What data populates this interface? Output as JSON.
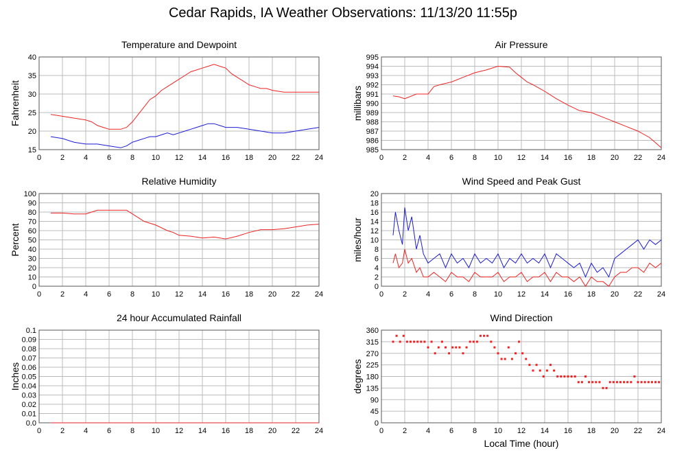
{
  "title": "Cedar Rapids, IA Weather Observations: 11/13/20 11:55p",
  "x_axis_label": "Local Time (hour)",
  "colors": {
    "red": "#ee2222",
    "blue": "#1a1ad6",
    "grid": "#bbbbbb",
    "frame": "#555555"
  },
  "chart_data": [
    {
      "id": "temp",
      "type": "line",
      "title": "Temperature and Dewpoint",
      "ylabel": "Fahrenheit",
      "ylim": [
        15,
        40
      ],
      "yticks": [
        "15",
        "20",
        "25",
        "30",
        "35",
        "40"
      ],
      "xlim": [
        0,
        24
      ],
      "xticks": [
        "0",
        "2",
        "4",
        "6",
        "8",
        "10",
        "12",
        "14",
        "16",
        "18",
        "20",
        "22",
        "24"
      ],
      "grid": true,
      "series": [
        {
          "color": "red",
          "x": [
            1,
            2,
            3,
            4,
            4.5,
            5,
            5.5,
            6,
            6.5,
            7,
            7.5,
            8,
            8.5,
            9,
            9.5,
            10,
            10.5,
            11,
            11.5,
            12,
            12.5,
            13,
            13.5,
            14,
            14.5,
            15,
            15.5,
            16,
            16.5,
            17,
            17.5,
            18,
            18.5,
            19,
            19.5,
            20,
            21,
            22,
            23,
            24
          ],
          "y": [
            24.5,
            24,
            23.5,
            23,
            22.5,
            21.5,
            21,
            20.5,
            20.5,
            20.5,
            21,
            22.5,
            24.5,
            26.5,
            28.5,
            29.5,
            31,
            32,
            33,
            34,
            35,
            36,
            36.5,
            37,
            37.5,
            38,
            37.5,
            37,
            35.5,
            34.5,
            33.5,
            32.5,
            32,
            31.5,
            31.5,
            31,
            30.5,
            30.5,
            30.5,
            30.5
          ]
        },
        {
          "color": "blue",
          "x": [
            1,
            2,
            3,
            4,
            5,
            6,
            7,
            7.5,
            8,
            8.5,
            9,
            9.5,
            10,
            10.5,
            11,
            11.5,
            12,
            12.5,
            13,
            13.5,
            14,
            14.5,
            15,
            15.5,
            16,
            17,
            18,
            19,
            20,
            21,
            22,
            23,
            24
          ],
          "y": [
            18.5,
            18,
            17,
            16.5,
            16.5,
            16,
            15.5,
            16,
            17,
            17.5,
            18,
            18.5,
            18.5,
            19,
            19.5,
            19,
            19.5,
            20,
            20.5,
            21,
            21.5,
            22,
            22,
            21.5,
            21,
            21,
            20.5,
            20,
            19.5,
            19.5,
            20,
            20.5,
            21
          ]
        }
      ]
    },
    {
      "id": "pressure",
      "type": "line",
      "title": "Air Pressure",
      "ylabel": "millibars",
      "ylim": [
        985,
        995
      ],
      "yticks": [
        "985",
        "986",
        "987",
        "988",
        "989",
        "990",
        "991",
        "992",
        "993",
        "994",
        "995"
      ],
      "xlim": [
        0,
        24
      ],
      "xticks": [
        "0",
        "2",
        "4",
        "6",
        "8",
        "10",
        "12",
        "14",
        "16",
        "18",
        "20",
        "22",
        "24"
      ],
      "grid": true,
      "series": [
        {
          "color": "red",
          "x": [
            1,
            1.5,
            2,
            3,
            4,
            4.5,
            5,
            6,
            7,
            8,
            9,
            10,
            11,
            11.5,
            12,
            12.5,
            13,
            14,
            15,
            16,
            17,
            18,
            19,
            20,
            21,
            22,
            23,
            24
          ],
          "y": [
            990.8,
            990.7,
            990.5,
            991.0,
            991.0,
            991.8,
            992.0,
            992.3,
            992.8,
            993.3,
            993.6,
            994.0,
            993.9,
            993.3,
            992.8,
            992.3,
            992.0,
            991.3,
            990.5,
            989.8,
            989.2,
            989.0,
            988.5,
            988.0,
            987.5,
            987.0,
            986.3,
            985.2
          ]
        }
      ]
    },
    {
      "id": "humidity",
      "type": "line",
      "title": "Relative Humidity",
      "ylabel": "Percent",
      "ylim": [
        0,
        100
      ],
      "yticks": [
        "0",
        "10",
        "20",
        "30",
        "40",
        "50",
        "60",
        "70",
        "80",
        "90",
        "100"
      ],
      "xlim": [
        0,
        24
      ],
      "xticks": [
        "0",
        "2",
        "4",
        "6",
        "8",
        "10",
        "12",
        "14",
        "16",
        "18",
        "20",
        "22",
        "24"
      ],
      "grid": true,
      "series": [
        {
          "color": "red",
          "x": [
            1,
            2,
            3,
            4,
            4.5,
            5,
            6,
            7,
            7.5,
            8,
            8.5,
            9,
            10,
            11,
            11.5,
            12,
            13,
            14,
            15,
            16,
            17,
            18,
            19,
            20,
            21,
            22,
            23,
            24
          ],
          "y": [
            79,
            79,
            78,
            78,
            80,
            82,
            82,
            82,
            82,
            78,
            74,
            70,
            66,
            60,
            58,
            55,
            54,
            52,
            53,
            51,
            54,
            58,
            61,
            61,
            62,
            64,
            66,
            67
          ]
        }
      ]
    },
    {
      "id": "wind",
      "type": "line",
      "title": "Wind Speed and Peak Gust",
      "ylabel": "miles/hour",
      "ylim": [
        0,
        20
      ],
      "yticks": [
        "0",
        "2",
        "4",
        "6",
        "8",
        "10",
        "12",
        "14",
        "16",
        "18",
        "20"
      ],
      "xlim": [
        0,
        24
      ],
      "xticks": [
        "0",
        "2",
        "4",
        "6",
        "8",
        "10",
        "12",
        "14",
        "16",
        "18",
        "20",
        "22",
        "24"
      ],
      "grid": true,
      "series": [
        {
          "color": "blue",
          "x": [
            1,
            1.2,
            1.5,
            1.8,
            2,
            2.3,
            2.6,
            3,
            3.3,
            3.6,
            4,
            4.5,
            5,
            5.5,
            6,
            6.5,
            7,
            7.5,
            8,
            8.5,
            9,
            9.5,
            10,
            10.5,
            11,
            11.5,
            12,
            12.5,
            13,
            13.5,
            14,
            14.5,
            15,
            15.5,
            16,
            16.5,
            17,
            17.5,
            18,
            18.5,
            19,
            19.5,
            20,
            20.5,
            21,
            21.5,
            22,
            22.5,
            23,
            23.5,
            24
          ],
          "y": [
            11,
            16,
            12,
            9,
            17,
            12,
            15,
            8,
            11,
            7,
            5,
            6,
            7,
            4,
            7,
            5,
            6,
            4,
            7,
            5,
            6,
            5,
            7,
            4,
            6,
            5,
            7,
            5,
            6,
            5,
            7,
            4,
            7,
            6,
            5,
            4,
            5,
            2,
            5,
            3,
            4,
            2,
            6,
            7,
            8,
            9,
            10,
            8,
            10,
            9,
            10
          ]
        },
        {
          "color": "red",
          "x": [
            1,
            1.2,
            1.5,
            1.8,
            2,
            2.3,
            2.6,
            3,
            3.3,
            3.6,
            4,
            4.5,
            5,
            5.5,
            6,
            6.5,
            7,
            7.5,
            8,
            8.5,
            9,
            9.5,
            10,
            10.5,
            11,
            11.5,
            12,
            12.5,
            13,
            13.5,
            14,
            14.5,
            15,
            15.5,
            16,
            16.5,
            17,
            17.5,
            18,
            18.5,
            19,
            19.5,
            20,
            20.5,
            21,
            21.5,
            22,
            22.5,
            23,
            23.5,
            24
          ],
          "y": [
            5,
            7,
            4,
            5,
            8,
            5,
            6,
            3,
            4,
            2,
            2,
            3,
            2,
            1,
            3,
            2,
            2,
            1,
            3,
            2,
            2,
            2,
            3,
            1,
            2,
            2,
            3,
            1,
            2,
            2,
            3,
            1,
            3,
            2,
            2,
            1,
            2,
            0,
            2,
            1,
            1,
            0,
            2,
            3,
            3,
            4,
            4,
            3,
            5,
            4,
            5
          ]
        }
      ]
    },
    {
      "id": "rain",
      "type": "line",
      "title": "24 hour Accumulated Rainfall",
      "ylabel": "Inches",
      "ylim": [
        0,
        0.1
      ],
      "yticks": [
        "0.0",
        "0.01",
        "0.02",
        "0.03",
        "0.04",
        "0.05",
        "0.06",
        "0.07",
        "0.08",
        "0.09",
        "0.1"
      ],
      "xlim": [
        0,
        24
      ],
      "xticks": [
        "0",
        "2",
        "4",
        "6",
        "8",
        "10",
        "12",
        "14",
        "16",
        "18",
        "20",
        "22",
        "24"
      ],
      "grid": true,
      "series": [
        {
          "color": "red",
          "x": [
            1,
            24
          ],
          "y": [
            0,
            0
          ]
        }
      ]
    },
    {
      "id": "direction",
      "type": "scatter",
      "title": "Wind Direction",
      "ylabel": "degrees",
      "ylim": [
        0,
        360
      ],
      "yticks": [
        "0",
        "45",
        "90",
        "135",
        "180",
        "225",
        "270",
        "315",
        "360"
      ],
      "xlim": [
        0,
        24
      ],
      "xticks": [
        "0",
        "2",
        "4",
        "6",
        "8",
        "10",
        "12",
        "14",
        "16",
        "18",
        "20",
        "22",
        "24"
      ],
      "grid": true,
      "series": [
        {
          "color": "red",
          "x": [
            1,
            1.3,
            1.6,
            1.9,
            2.2,
            2.5,
            2.8,
            3.1,
            3.4,
            3.7,
            4.0,
            4.3,
            4.6,
            4.9,
            5.2,
            5.5,
            5.8,
            6.1,
            6.4,
            6.7,
            7.0,
            7.3,
            7.6,
            7.9,
            8.2,
            8.5,
            8.8,
            9.1,
            9.4,
            9.7,
            10.0,
            10.3,
            10.6,
            10.9,
            11.2,
            11.5,
            11.8,
            12.1,
            12.4,
            12.7,
            13.0,
            13.3,
            13.6,
            13.9,
            14.2,
            14.5,
            14.8,
            15.1,
            15.4,
            15.7,
            16.0,
            16.3,
            16.6,
            16.9,
            17.2,
            17.5,
            17.8,
            18.1,
            18.4,
            18.7,
            19.0,
            19.3,
            19.6,
            19.9,
            20.2,
            20.5,
            20.8,
            21.1,
            21.4,
            21.7,
            22.0,
            22.3,
            22.6,
            22.9,
            23.2,
            23.5,
            23.8
          ],
          "y": [
            315,
            338,
            315,
            338,
            315,
            315,
            315,
            315,
            315,
            315,
            293,
            315,
            270,
            293,
            315,
            293,
            270,
            293,
            293,
            293,
            270,
            293,
            315,
            315,
            315,
            338,
            338,
            338,
            315,
            293,
            270,
            248,
            248,
            293,
            248,
            270,
            315,
            270,
            248,
            225,
            203,
            225,
            203,
            180,
            203,
            225,
            203,
            180,
            180,
            180,
            180,
            180,
            180,
            158,
            158,
            180,
            158,
            158,
            158,
            158,
            135,
            135,
            158,
            158,
            158,
            158,
            158,
            158,
            158,
            180,
            158,
            158,
            158,
            158,
            158,
            158,
            158
          ]
        }
      ]
    }
  ]
}
